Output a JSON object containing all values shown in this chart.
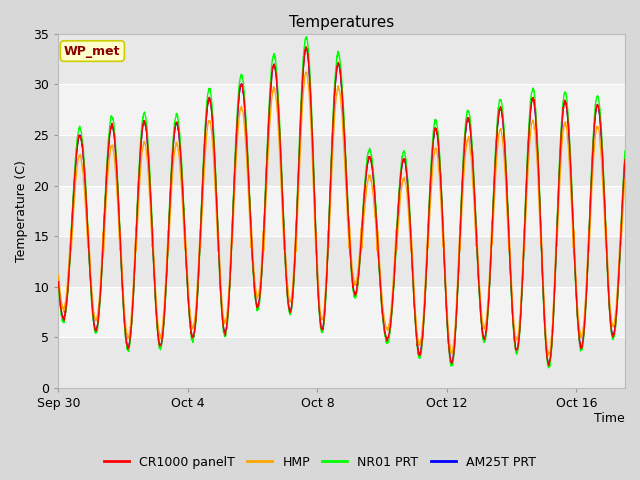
{
  "title": "Temperatures",
  "xlabel": "Time",
  "ylabel": "Temperature (C)",
  "ylim": [
    0,
    35
  ],
  "yticks": [
    0,
    5,
    10,
    15,
    20,
    25,
    30,
    35
  ],
  "fig_bg_color": "#d8d8d8",
  "axes_bg_color": "#e8e8e8",
  "grid_color": "#ffffff",
  "legend_labels": [
    "CR1000 panelT",
    "HMP",
    "NR01 PRT",
    "AM25T PRT"
  ],
  "legend_colors": [
    "red",
    "orange",
    "lime",
    "blue"
  ],
  "annotation_text": "WP_met",
  "annotation_bg": "#ffffcc",
  "annotation_border": "#cccc00",
  "annotation_text_color": "#8b0000",
  "xtick_positions": [
    0,
    4,
    8,
    12,
    16
  ],
  "xtick_labels": [
    "Sep 30",
    "Oct 4",
    "Oct 8",
    "Oct 12",
    "Oct 16"
  ],
  "xlim": [
    0,
    17.5
  ],
  "figsize": [
    6.4,
    4.8
  ],
  "dpi": 100,
  "peaks": [
    23,
    26,
    26,
    26.5,
    26,
    30,
    30,
    33,
    34,
    31,
    18,
    25,
    26,
    27,
    28,
    29,
    28,
    28,
    25
  ],
  "troughs": [
    7,
    6,
    4,
    4,
    5,
    5,
    8,
    8,
    5,
    10,
    5,
    3.5,
    2,
    5,
    4,
    2,
    4,
    4,
    12
  ]
}
